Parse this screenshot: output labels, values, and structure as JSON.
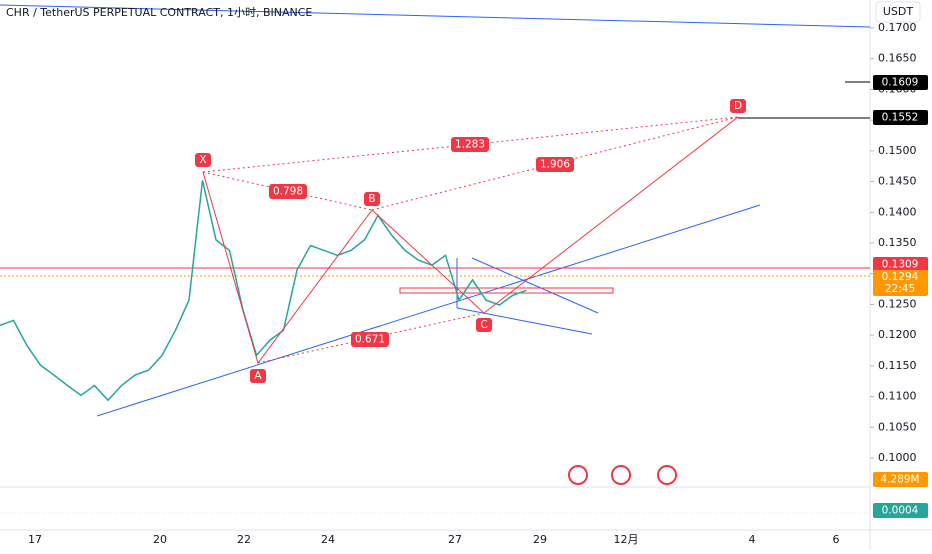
{
  "header": {
    "title": "CHR / TetherUS PERPETUAL CONTRACT, 1小时, BINANCE",
    "currency": "USDT"
  },
  "price_axis": {
    "ticks": [
      {
        "value": 0.17,
        "label": "0.1700"
      },
      {
        "value": 0.165,
        "label": "0.1650"
      },
      {
        "value": 0.16,
        "label": "0.1600"
      },
      {
        "value": 0.155,
        "label": "0.1550"
      },
      {
        "value": 0.15,
        "label": "0.1500"
      },
      {
        "value": 0.145,
        "label": "0.1450"
      },
      {
        "value": 0.14,
        "label": "0.1400"
      },
      {
        "value": 0.135,
        "label": "0.1350"
      },
      {
        "value": 0.13,
        "label": "0.1300"
      },
      {
        "value": 0.125,
        "label": "0.1250"
      },
      {
        "value": 0.12,
        "label": "0.1200"
      },
      {
        "value": 0.115,
        "label": "0.1150"
      },
      {
        "value": 0.11,
        "label": "0.1100"
      },
      {
        "value": 0.105,
        "label": "0.1050"
      },
      {
        "value": 0.1,
        "label": "0.1000"
      }
    ]
  },
  "time_axis": {
    "labels": [
      "17",
      "20",
      "22",
      "24",
      "27",
      "29",
      "12月",
      "4",
      "6"
    ]
  },
  "price_tags": {
    "level_d_upper": "0.1609",
    "level_d": "0.1552",
    "resistance": "0.1309",
    "last_price": "0.1294",
    "countdown": "22:45",
    "volume": "4.289M",
    "indicator": "0.0004"
  },
  "pattern": {
    "points": [
      "X",
      "A",
      "B",
      "C",
      "D"
    ],
    "ratios": {
      "xab": "0.798",
      "abc": "0.671",
      "xad": "1.283",
      "bcd": "1.906"
    }
  },
  "price_series": {
    "color": "#26a69a",
    "values": [
      0.1216,
      0.1224,
      0.1183,
      0.1151,
      0.1135,
      0.1118,
      0.1102,
      0.1118,
      0.1094,
      0.1118,
      0.1135,
      0.1143,
      0.1167,
      0.1208,
      0.1257,
      0.1452,
      0.1355,
      0.1338,
      0.1241,
      0.1167,
      0.1192,
      0.1208,
      0.1306,
      0.1346,
      0.1338,
      0.133,
      0.1338,
      0.1355,
      0.1395,
      0.1363,
      0.1338,
      0.1322,
      0.1314,
      0.133,
      0.1257,
      0.129,
      0.1257,
      0.1249,
      0.1265,
      0.1273
    ]
  }
}
